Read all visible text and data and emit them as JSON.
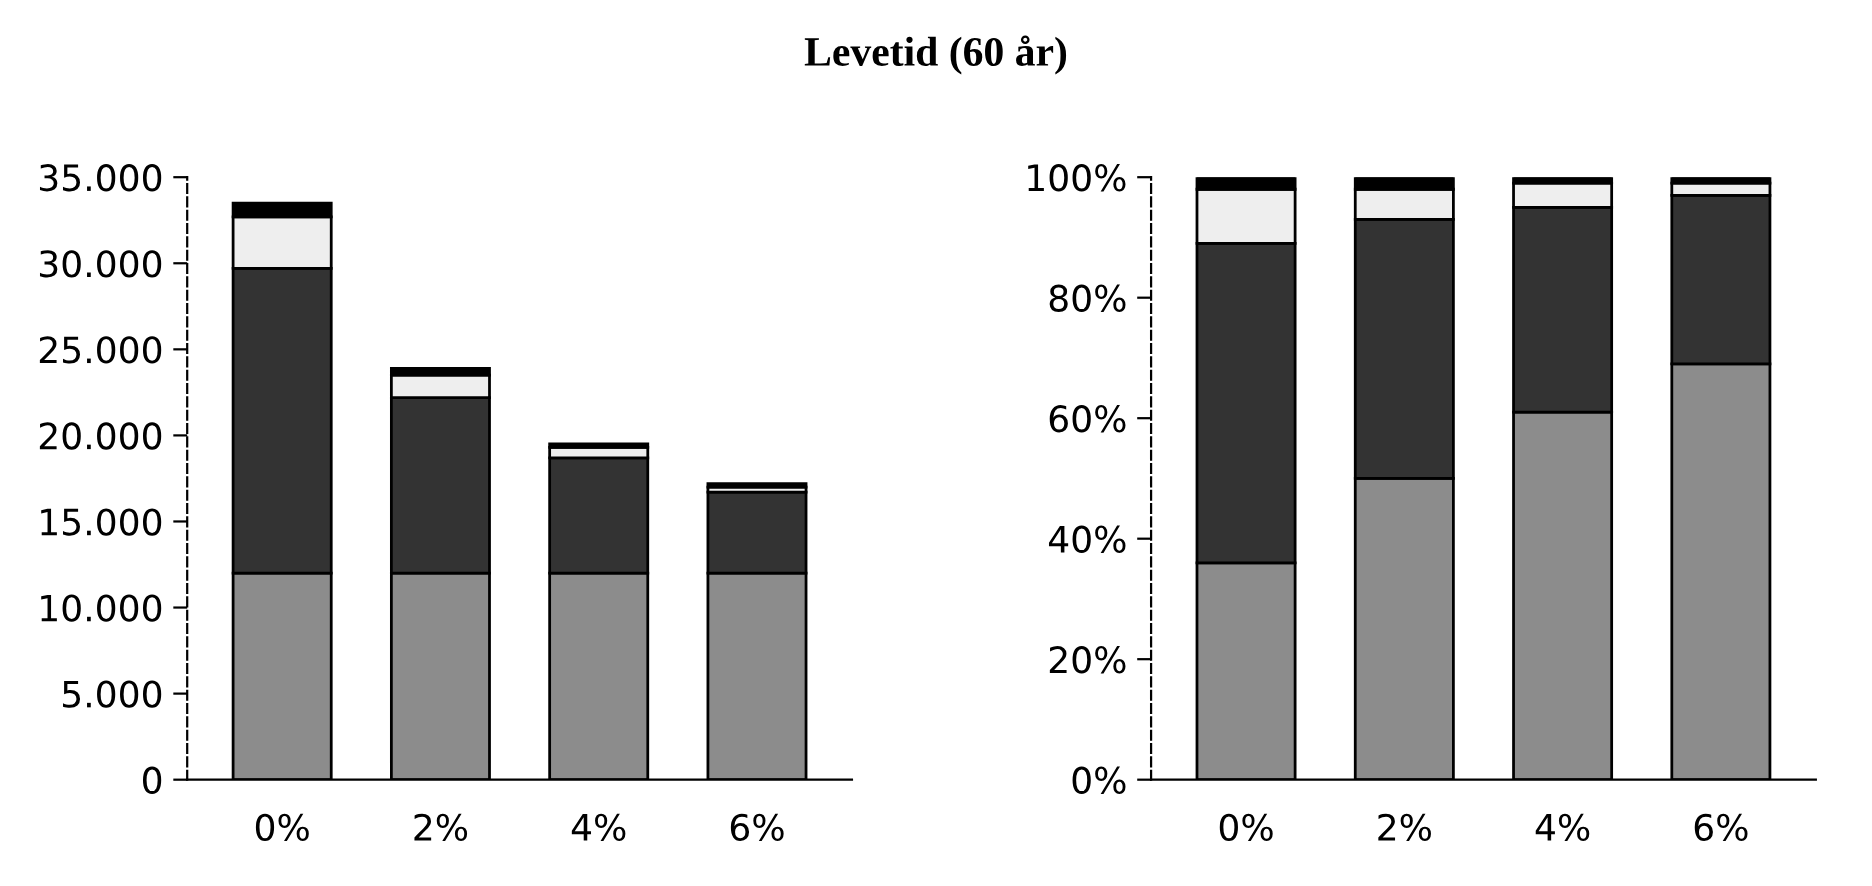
{
  "chart_data": [
    {
      "type": "bar",
      "title": "Levetid (60 år)",
      "stacked": true,
      "categories": [
        "0%",
        "2%",
        "4%",
        "6%"
      ],
      "series": [
        {
          "color": "#8c8c8c",
          "values": [
            12000,
            12000,
            12000,
            12000
          ]
        },
        {
          "color": "#333333",
          "values": [
            17700,
            10200,
            6700,
            4700
          ]
        },
        {
          "color": "#eeeeee",
          "values": [
            3000,
            1300,
            600,
            300
          ]
        },
        {
          "color": "#000000",
          "values": [
            800,
            400,
            200,
            200
          ]
        }
      ],
      "ylim": [
        0,
        35000
      ],
      "yticks": [
        {
          "value": 0,
          "label": "0"
        },
        {
          "value": 5000,
          "label": "5.000"
        },
        {
          "value": 10000,
          "label": "10.000"
        },
        {
          "value": 15000,
          "label": "15.000"
        },
        {
          "value": 20000,
          "label": "20.000"
        },
        {
          "value": 25000,
          "label": "25.000"
        },
        {
          "value": 30000,
          "label": "30.000"
        },
        {
          "value": 35000,
          "label": "35.000"
        }
      ],
      "grid": false
    },
    {
      "type": "bar",
      "stacked": true,
      "categories": [
        "0%",
        "2%",
        "4%",
        "6%"
      ],
      "series": [
        {
          "color": "#8c8c8c",
          "values": [
            36,
            50,
            61,
            69
          ]
        },
        {
          "color": "#333333",
          "values": [
            53,
            43,
            34,
            28
          ]
        },
        {
          "color": "#eeeeee",
          "values": [
            9,
            5,
            4,
            2
          ]
        },
        {
          "color": "#000000",
          "values": [
            2,
            2,
            1,
            1
          ]
        }
      ],
      "ylim": [
        0,
        100
      ],
      "yticks": [
        {
          "value": 0,
          "label": "0%"
        },
        {
          "value": 20,
          "label": "20%"
        },
        {
          "value": 40,
          "label": "40%"
        },
        {
          "value": 60,
          "label": "60%"
        },
        {
          "value": 80,
          "label": "80%"
        },
        {
          "value": 100,
          "label": "100%"
        }
      ],
      "grid": false
    }
  ]
}
